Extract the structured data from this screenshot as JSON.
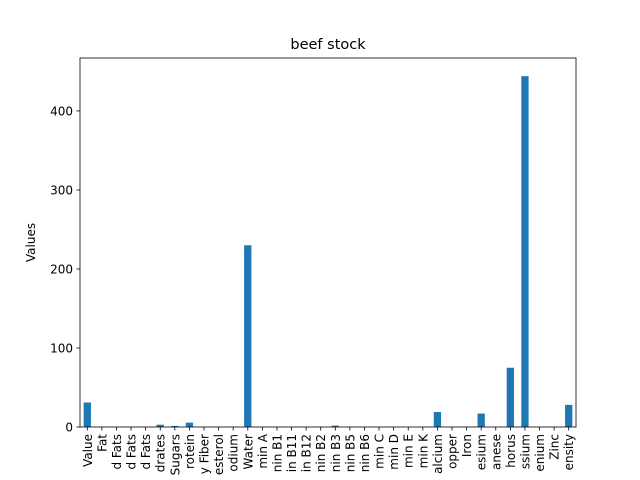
{
  "chart_data": {
    "type": "bar",
    "title": "beef stock",
    "xlabel": "",
    "ylabel": "Values",
    "ylim": [
      0,
      467
    ],
    "yticks": [
      0,
      100,
      200,
      300,
      400
    ],
    "grid": false,
    "legend": false,
    "bar_color": "#1f77b4",
    "categories": [
      "Value",
      "Fat",
      "d Fats",
      "d Fats",
      "d Fats",
      "drates",
      "Sugars",
      "rotein",
      "y Fiber",
      "esterol",
      "odium",
      "Water",
      "min A",
      "nin B1",
      "in B11",
      "in B12",
      "nin B2",
      "nin B3",
      "nin B5",
      "nin B6",
      "min C",
      "min D",
      "min E",
      "min K",
      "alcium",
      "opper",
      "Iron",
      "esium",
      "anese",
      "horus",
      "ssium",
      "enium",
      "Zinc",
      "ensity"
    ],
    "values": [
      31,
      0.2,
      0.1,
      0.1,
      0.1,
      2.9,
      1.3,
      5.5,
      0,
      0,
      0.3,
      230,
      0,
      0.1,
      0,
      0,
      0.1,
      1.7,
      0.2,
      0.1,
      0,
      0,
      0,
      0,
      19,
      0,
      0.3,
      17,
      0,
      75,
      444,
      0,
      0,
      28
    ]
  }
}
